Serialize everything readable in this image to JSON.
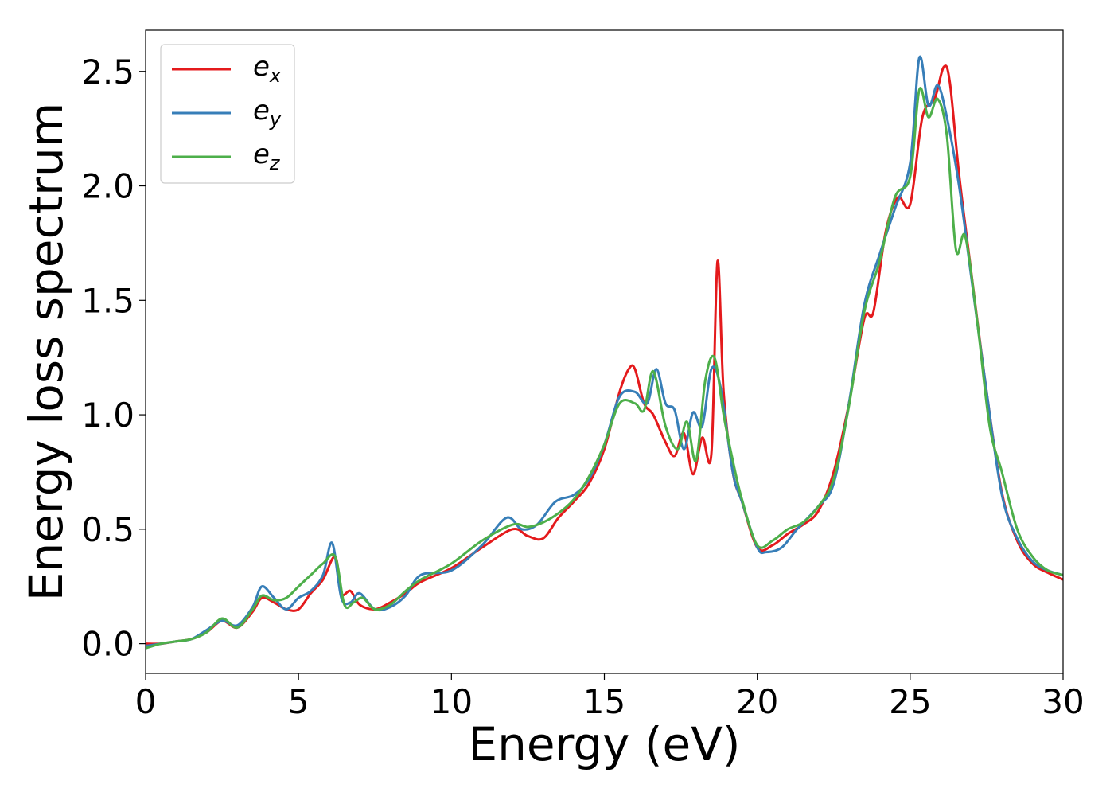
{
  "chart_data": {
    "type": "line",
    "title": "",
    "xlabel": "Energy (eV)",
    "ylabel": "Energy loss spectrum",
    "xlim": [
      0,
      30
    ],
    "ylim": [
      -0.13,
      2.68
    ],
    "xticks": [
      0,
      5,
      10,
      15,
      20,
      25,
      30
    ],
    "xtick_labels": [
      "0",
      "5",
      "10",
      "15",
      "20",
      "25",
      "30"
    ],
    "yticks": [
      0.0,
      0.5,
      1.0,
      1.5,
      2.0,
      2.5
    ],
    "ytick_labels": [
      "0.0",
      "0.5",
      "1.0",
      "1.5",
      "2.0",
      "2.5"
    ],
    "grid": false,
    "legend_position": "top-left",
    "series": [
      {
        "name": "e_x",
        "legend_base": "e",
        "legend_sub": "x",
        "color": "#e41a1c",
        "x": [
          0,
          0.5,
          1.0,
          1.5,
          2.0,
          2.5,
          3.0,
          3.5,
          3.8,
          4.2,
          4.6,
          5.0,
          5.4,
          5.8,
          6.2,
          6.4,
          6.7,
          7.0,
          7.5,
          8.0,
          8.5,
          9.0,
          10.0,
          11.0,
          12.0,
          12.5,
          13.0,
          13.5,
          14.0,
          14.5,
          15.0,
          15.5,
          15.8,
          16.0,
          16.3,
          16.6,
          17.0,
          17.3,
          17.6,
          17.9,
          18.2,
          18.5,
          18.7,
          18.9,
          19.2,
          19.5,
          20.0,
          20.5,
          21.0,
          21.5,
          22.0,
          22.5,
          23.0,
          23.5,
          23.8,
          24.2,
          24.6,
          25.0,
          25.4,
          25.8,
          26.1,
          26.3,
          26.6,
          27.0,
          27.5,
          28.0,
          28.5,
          29.0,
          29.5,
          30.0
        ],
        "y": [
          0.0,
          0.0,
          0.01,
          0.02,
          0.05,
          0.1,
          0.07,
          0.14,
          0.2,
          0.18,
          0.15,
          0.15,
          0.22,
          0.28,
          0.38,
          0.22,
          0.23,
          0.17,
          0.15,
          0.18,
          0.22,
          0.27,
          0.33,
          0.42,
          0.5,
          0.47,
          0.46,
          0.55,
          0.62,
          0.7,
          0.85,
          1.1,
          1.2,
          1.2,
          1.05,
          1.0,
          0.88,
          0.82,
          0.92,
          0.74,
          0.9,
          0.83,
          1.67,
          1.1,
          0.75,
          0.62,
          0.42,
          0.43,
          0.48,
          0.52,
          0.58,
          0.75,
          1.05,
          1.42,
          1.45,
          1.8,
          1.95,
          1.92,
          2.3,
          2.38,
          2.52,
          2.45,
          2.05,
          1.62,
          1.1,
          0.66,
          0.45,
          0.35,
          0.31,
          0.28
        ]
      },
      {
        "name": "e_y",
        "legend_base": "e",
        "legend_sub": "y",
        "color": "#377eb8",
        "x": [
          0,
          0.5,
          1.0,
          1.5,
          2.0,
          2.5,
          3.0,
          3.5,
          3.8,
          4.2,
          4.6,
          5.0,
          5.4,
          5.8,
          6.1,
          6.4,
          6.7,
          7.0,
          7.5,
          8.0,
          8.5,
          9.0,
          10.0,
          11.0,
          11.8,
          12.3,
          12.8,
          13.4,
          14.0,
          14.5,
          15.0,
          15.5,
          16.0,
          16.4,
          16.7,
          17.0,
          17.3,
          17.6,
          17.9,
          18.2,
          18.5,
          18.8,
          19.2,
          19.5,
          20.0,
          20.3,
          20.8,
          21.3,
          22.0,
          22.5,
          23.0,
          23.5,
          24.0,
          24.5,
          25.0,
          25.3,
          25.6,
          25.9,
          26.2,
          26.6,
          27.0,
          27.5,
          28.0,
          28.5,
          29.0,
          29.5,
          30.0
        ],
        "y": [
          -0.01,
          0.0,
          0.01,
          0.02,
          0.06,
          0.1,
          0.08,
          0.16,
          0.25,
          0.2,
          0.15,
          0.2,
          0.23,
          0.3,
          0.44,
          0.2,
          0.18,
          0.22,
          0.15,
          0.16,
          0.21,
          0.3,
          0.32,
          0.43,
          0.55,
          0.5,
          0.52,
          0.62,
          0.65,
          0.72,
          0.87,
          1.08,
          1.1,
          1.05,
          1.2,
          1.05,
          1.02,
          0.85,
          1.01,
          0.95,
          1.2,
          1.12,
          0.75,
          0.62,
          0.42,
          0.4,
          0.42,
          0.5,
          0.6,
          0.7,
          1.05,
          1.48,
          1.7,
          1.9,
          2.1,
          2.56,
          2.35,
          2.44,
          2.3,
          2.0,
          1.6,
          1.1,
          0.65,
          0.46,
          0.36,
          0.32,
          0.3
        ]
      },
      {
        "name": "e_z",
        "legend_base": "e",
        "legend_sub": "z",
        "color": "#4daf4a",
        "x": [
          0,
          0.5,
          1.0,
          1.5,
          2.0,
          2.5,
          3.0,
          3.5,
          3.8,
          4.2,
          4.6,
          5.0,
          5.4,
          5.8,
          6.2,
          6.5,
          6.8,
          7.1,
          7.5,
          8.0,
          8.5,
          9.0,
          10.0,
          11.0,
          12.0,
          12.5,
          13.0,
          13.5,
          14.0,
          14.5,
          15.0,
          15.5,
          16.0,
          16.3,
          16.6,
          17.0,
          17.4,
          17.7,
          18.0,
          18.3,
          18.6,
          18.9,
          19.2,
          19.5,
          20.0,
          20.5,
          21.0,
          21.5,
          22.0,
          22.5,
          23.0,
          23.5,
          24.0,
          24.5,
          25.0,
          25.3,
          25.6,
          25.9,
          26.2,
          26.5,
          26.8,
          27.2,
          27.6,
          28.0,
          28.5,
          29.0,
          29.5,
          30.0
        ],
        "y": [
          -0.02,
          0.0,
          0.01,
          0.02,
          0.05,
          0.11,
          0.07,
          0.15,
          0.21,
          0.19,
          0.2,
          0.25,
          0.3,
          0.35,
          0.38,
          0.17,
          0.18,
          0.2,
          0.15,
          0.17,
          0.23,
          0.28,
          0.35,
          0.45,
          0.52,
          0.51,
          0.53,
          0.57,
          0.63,
          0.73,
          0.87,
          1.05,
          1.05,
          1.02,
          1.19,
          0.95,
          0.85,
          0.97,
          0.8,
          1.15,
          1.25,
          1.0,
          0.8,
          0.63,
          0.43,
          0.45,
          0.5,
          0.53,
          0.6,
          0.72,
          1.04,
          1.45,
          1.67,
          1.95,
          2.04,
          2.42,
          2.3,
          2.38,
          2.22,
          1.72,
          1.78,
          1.4,
          0.95,
          0.75,
          0.5,
          0.38,
          0.32,
          0.3
        ]
      }
    ]
  }
}
